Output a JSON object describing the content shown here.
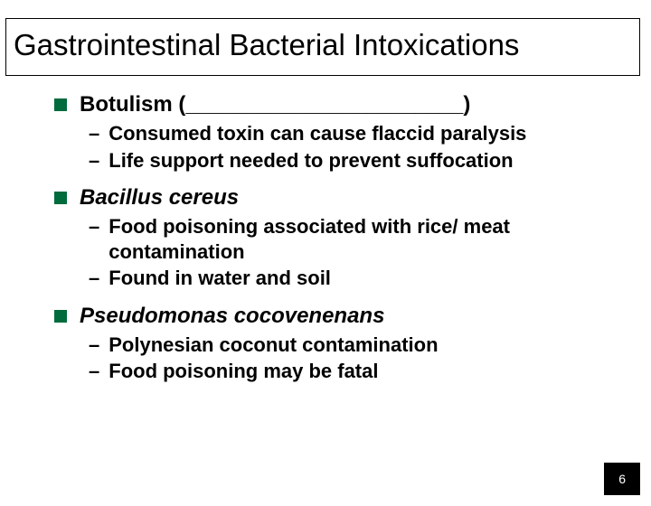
{
  "title": "Gastrointestinal Bacterial Intoxications",
  "items": [
    {
      "label": "Botulism (_______________________)",
      "italic": false,
      "subs": [
        "Consumed toxin can cause flaccid paralysis",
        "Life support needed to prevent suffocation"
      ]
    },
    {
      "label": "Bacillus cereus",
      "italic": true,
      "subs": [
        "Food poisoning associated with rice/ meat contamination",
        "Found in water and soil"
      ]
    },
    {
      "label": "Pseudomonas cocovenenans",
      "italic": true,
      "subs": [
        "Polynesian coconut contamination",
        "Food poisoning may be fatal"
      ]
    }
  ],
  "pageNumber": "6",
  "colors": {
    "bullet": "#006b3c",
    "pageNumBg": "#000000",
    "pageNumText": "#ffffff"
  }
}
